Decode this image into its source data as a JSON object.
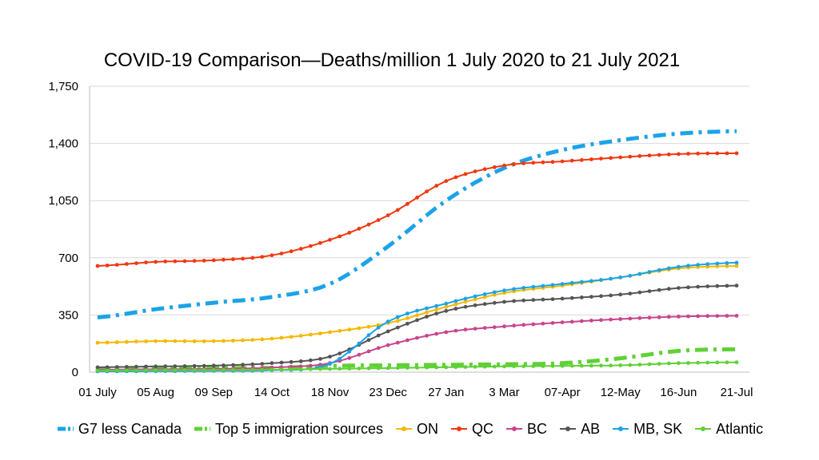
{
  "chart_data": {
    "type": "line",
    "title": "COVID-19 Comparison—Deaths/million 1 July 2020 to 21 July 2021",
    "xlabel": "",
    "ylabel": "",
    "ylim": [
      0,
      1750
    ],
    "yticks": [
      "0",
      "350",
      "700",
      "1,050",
      "1,400",
      "1,750"
    ],
    "ytick_values": [
      0,
      350,
      700,
      1050,
      1400,
      1750
    ],
    "xticks": [
      "01 July",
      "05 Aug",
      "09 Sep",
      "14 Oct",
      "18 Nov",
      "23 Dec",
      "27 Jan",
      "3 Mar",
      "07-Apr",
      "12-May",
      "16-Jun",
      "21-Jul"
    ],
    "x": [
      "01 July",
      "05 Aug",
      "09 Sep",
      "14 Oct",
      "18 Nov",
      "23 Dec",
      "27 Jan",
      "3 Mar",
      "07-Apr",
      "12-May",
      "16-Jun",
      "21-Jul"
    ],
    "grid": true,
    "legend_position": "bottom",
    "series": [
      {
        "name": "G7 less Canada",
        "color": "#1BA3E8",
        "style": "dashdot-thick",
        "values": [
          335,
          385,
          425,
          460,
          540,
          770,
          1050,
          1250,
          1360,
          1420,
          1460,
          1475
        ]
      },
      {
        "name": "Top 5 immigration sources",
        "color": "#5FD136",
        "style": "dashdot-thick",
        "values": [
          15,
          22,
          25,
          26,
          38,
          42,
          45,
          48,
          55,
          85,
          130,
          140
        ]
      },
      {
        "name": "ON",
        "color": "#F5B800",
        "style": "solid-markers",
        "values": [
          180,
          190,
          190,
          205,
          245,
          300,
          400,
          485,
          530,
          580,
          635,
          650
        ]
      },
      {
        "name": "QC",
        "color": "#F03810",
        "style": "solid-markers",
        "values": [
          650,
          675,
          685,
          715,
          810,
          960,
          1170,
          1265,
          1290,
          1315,
          1335,
          1340
        ]
      },
      {
        "name": "BC",
        "color": "#C8458C",
        "style": "solid-markers",
        "values": [
          15,
          18,
          20,
          28,
          55,
          165,
          245,
          280,
          305,
          325,
          340,
          345
        ]
      },
      {
        "name": "AB",
        "color": "#555555",
        "style": "solid-markers",
        "values": [
          30,
          35,
          40,
          55,
          95,
          250,
          375,
          430,
          450,
          475,
          515,
          530
        ]
      },
      {
        "name": "MB, SK",
        "color": "#1BA3E8",
        "style": "solid-markers",
        "values": [
          5,
          6,
          8,
          12,
          50,
          310,
          420,
          500,
          540,
          580,
          645,
          670
        ]
      },
      {
        "name": "Atlantic",
        "color": "#5FD136",
        "style": "solid-markers",
        "values": [
          10,
          12,
          13,
          15,
          20,
          25,
          30,
          35,
          38,
          42,
          55,
          60
        ]
      }
    ]
  }
}
